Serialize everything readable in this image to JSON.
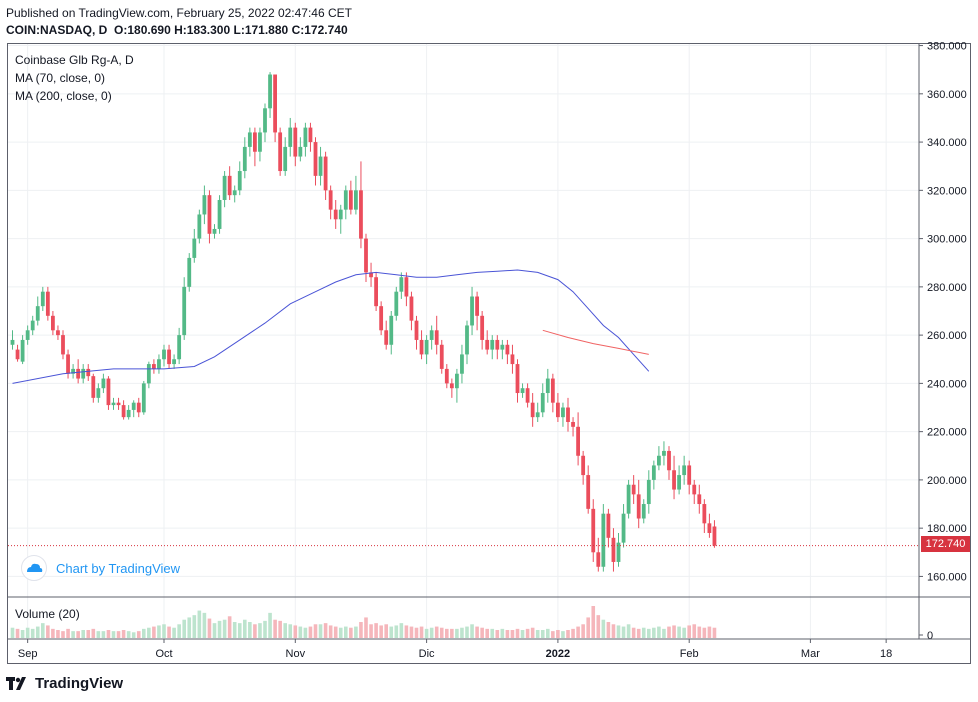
{
  "header": {
    "published": "Published on TradingView.com, February 25, 2022 02:47:46 CET",
    "symbol": "COIN:NASDAQ, D",
    "ohlc": [
      {
        "k": "O:",
        "v": "180.690"
      },
      {
        "k": "H:",
        "v": "183.300"
      },
      {
        "k": "L:",
        "v": "171.880"
      },
      {
        "k": "C:",
        "v": "172.740"
      }
    ]
  },
  "legend": {
    "title": "Coinbase Glb Rg-A, D",
    "ma70": "MA (70, close, 0)",
    "ma200": "MA (200, close, 0)",
    "volume": "Volume (20)"
  },
  "last_price": "172.740",
  "chart_by": "Chart by TradingView",
  "brand": "TradingView",
  "colors": {
    "up": "#53b987",
    "down": "#eb4d5c",
    "ma70": "#4a54d6",
    "ma200": "#f06363",
    "up_vol": "#bde4ce",
    "down_vol": "#f5b6bb",
    "price_tag": "#d7333f"
  },
  "chart_data": {
    "type": "candlestick",
    "title": "COIN:NASDAQ, D",
    "y_ticks": [
      "380.000",
      "360.000",
      "340.000",
      "320.000",
      "300.000",
      "280.000",
      "260.000",
      "240.000",
      "220.000",
      "200.000",
      "180.000",
      "160.000"
    ],
    "ylim": [
      152,
      380
    ],
    "x_ticks": [
      {
        "label": "Sep",
        "day": 3
      },
      {
        "label": "Oct",
        "day": 30
      },
      {
        "label": "Nov",
        "day": 56
      },
      {
        "label": "Dic",
        "day": 82
      },
      {
        "label": "2022",
        "day": 108
      },
      {
        "label": "Feb",
        "day": 134
      },
      {
        "label": "Mar",
        "day": 158
      },
      {
        "label": "18",
        "day": 173
      }
    ],
    "volume_axis_label": "0",
    "candles": [
      [
        256,
        258,
        262,
        254
      ],
      [
        254,
        250,
        256,
        249
      ],
      [
        249,
        258,
        260,
        248
      ],
      [
        258,
        262,
        264,
        256
      ],
      [
        262,
        266,
        268,
        260
      ],
      [
        266,
        272,
        276,
        264
      ],
      [
        272,
        278,
        280,
        270
      ],
      [
        278,
        268,
        280,
        266
      ],
      [
        268,
        262,
        270,
        260
      ],
      [
        262,
        260,
        264,
        258
      ],
      [
        260,
        252,
        262,
        250
      ],
      [
        252,
        244,
        254,
        242
      ],
      [
        244,
        246,
        248,
        242
      ],
      [
        246,
        242,
        250,
        240
      ],
      [
        242,
        246,
        248,
        240
      ],
      [
        246,
        243,
        248,
        241
      ],
      [
        243,
        234,
        244,
        232
      ],
      [
        234,
        238,
        240,
        232
      ],
      [
        238,
        242,
        244,
        236
      ],
      [
        242,
        231,
        243,
        229
      ],
      [
        231,
        232,
        234,
        229
      ],
      [
        232,
        231,
        234,
        229
      ],
      [
        231,
        226,
        233,
        225
      ],
      [
        226,
        229,
        231,
        225
      ],
      [
        229,
        232,
        233,
        226
      ],
      [
        232,
        228,
        234,
        226
      ],
      [
        228,
        240,
        241,
        227
      ],
      [
        240,
        248,
        249,
        238
      ],
      [
        248,
        246,
        250,
        244
      ],
      [
        246,
        250,
        252,
        244
      ],
      [
        250,
        254,
        256,
        247
      ],
      [
        254,
        248,
        256,
        246
      ],
      [
        248,
        250,
        252,
        246
      ],
      [
        250,
        260,
        263,
        248
      ],
      [
        260,
        280,
        284,
        258
      ],
      [
        280,
        292,
        294,
        278
      ],
      [
        292,
        300,
        304,
        290
      ],
      [
        300,
        310,
        312,
        298
      ],
      [
        310,
        318,
        322,
        306
      ],
      [
        318,
        302,
        320,
        298
      ],
      [
        302,
        304,
        306,
        300
      ],
      [
        304,
        316,
        318,
        302
      ],
      [
        316,
        326,
        328,
        313
      ],
      [
        326,
        318,
        330,
        316
      ],
      [
        318,
        320,
        322,
        315
      ],
      [
        320,
        328,
        332,
        318
      ],
      [
        328,
        338,
        342,
        325
      ],
      [
        338,
        344,
        346,
        334
      ],
      [
        344,
        336,
        346,
        330
      ],
      [
        336,
        344,
        346,
        332
      ],
      [
        344,
        354,
        356,
        340
      ],
      [
        354,
        368,
        369,
        350
      ],
      [
        368,
        344,
        358,
        340
      ],
      [
        344,
        328,
        346,
        326
      ],
      [
        328,
        338,
        342,
        326
      ],
      [
        338,
        346,
        350,
        334
      ],
      [
        346,
        334,
        348,
        330
      ],
      [
        334,
        338,
        342,
        332
      ],
      [
        338,
        346,
        348,
        334
      ],
      [
        346,
        340,
        348,
        336
      ],
      [
        340,
        326,
        342,
        322
      ],
      [
        326,
        334,
        338,
        322
      ],
      [
        334,
        320,
        336,
        316
      ],
      [
        320,
        312,
        322,
        308
      ],
      [
        312,
        308,
        316,
        304
      ],
      [
        308,
        312,
        314,
        302
      ],
      [
        312,
        320,
        322,
        308
      ],
      [
        320,
        312,
        324,
        310
      ],
      [
        312,
        320,
        326,
        310
      ],
      [
        320,
        300,
        332,
        296
      ],
      [
        300,
        286,
        302,
        282
      ],
      [
        286,
        284,
        290,
        280
      ],
      [
        284,
        272,
        286,
        270
      ],
      [
        272,
        262,
        274,
        260
      ],
      [
        262,
        256,
        266,
        254
      ],
      [
        256,
        268,
        270,
        252
      ],
      [
        268,
        278,
        280,
        266
      ],
      [
        278,
        284,
        286,
        275
      ],
      [
        284,
        276,
        286,
        272
      ],
      [
        276,
        266,
        278,
        262
      ],
      [
        266,
        258,
        268,
        254
      ],
      [
        258,
        252,
        262,
        250
      ],
      [
        252,
        258,
        260,
        248
      ],
      [
        258,
        262,
        264,
        254
      ],
      [
        262,
        256,
        268,
        252
      ],
      [
        256,
        246,
        258,
        244
      ],
      [
        246,
        240,
        248,
        238
      ],
      [
        240,
        238,
        242,
        234
      ],
      [
        238,
        244,
        246,
        232
      ],
      [
        244,
        252,
        256,
        240
      ],
      [
        252,
        264,
        266,
        248
      ],
      [
        264,
        276,
        280,
        260
      ],
      [
        276,
        268,
        278,
        262
      ],
      [
        268,
        258,
        270,
        254
      ],
      [
        258,
        254,
        262,
        252
      ],
      [
        254,
        258,
        260,
        250
      ],
      [
        258,
        254,
        260,
        250
      ],
      [
        254,
        256,
        258,
        250
      ],
      [
        256,
        252,
        258,
        248
      ],
      [
        252,
        248,
        256,
        244
      ],
      [
        248,
        236,
        250,
        232
      ],
      [
        236,
        238,
        240,
        234
      ],
      [
        238,
        232,
        240,
        230
      ],
      [
        232,
        226,
        236,
        222
      ],
      [
        226,
        228,
        232,
        224
      ],
      [
        228,
        236,
        240,
        226
      ],
      [
        236,
        242,
        246,
        232
      ],
      [
        242,
        232,
        244,
        228
      ],
      [
        232,
        226,
        236,
        224
      ],
      [
        226,
        230,
        232,
        222
      ],
      [
        230,
        224,
        234,
        220
      ],
      [
        224,
        222,
        226,
        218
      ],
      [
        222,
        210,
        228,
        206
      ],
      [
        210,
        202,
        212,
        198
      ],
      [
        202,
        188,
        206,
        186
      ],
      [
        188,
        170,
        192,
        166
      ],
      [
        170,
        164,
        176,
        162
      ],
      [
        164,
        186,
        190,
        162
      ],
      [
        186,
        176,
        188,
        172
      ],
      [
        176,
        166,
        180,
        162
      ],
      [
        166,
        174,
        178,
        164
      ],
      [
        174,
        186,
        190,
        172
      ],
      [
        186,
        198,
        200,
        184
      ],
      [
        198,
        194,
        202,
        190
      ],
      [
        194,
        184,
        200,
        180
      ],
      [
        184,
        190,
        192,
        182
      ],
      [
        190,
        200,
        204,
        186
      ],
      [
        200,
        206,
        208,
        196
      ],
      [
        206,
        210,
        214,
        204
      ],
      [
        210,
        212,
        216,
        206
      ],
      [
        212,
        204,
        214,
        200
      ],
      [
        204,
        196,
        210,
        192
      ],
      [
        196,
        202,
        206,
        194
      ],
      [
        202,
        206,
        210,
        198
      ],
      [
        206,
        198,
        208,
        194
      ],
      [
        198,
        194,
        200,
        190
      ],
      [
        194,
        190,
        198,
        186
      ],
      [
        190,
        182,
        192,
        178
      ],
      [
        182,
        178,
        186,
        176
      ],
      [
        180.69,
        172.74,
        183.3,
        171.88
      ]
    ],
    "volumes": [
      9,
      8,
      7,
      9,
      8,
      10,
      13,
      11,
      8,
      7,
      6,
      8,
      6,
      6,
      7,
      7,
      8,
      6,
      6,
      7,
      6,
      6,
      7,
      6,
      5,
      6,
      8,
      9,
      10,
      11,
      12,
      10,
      9,
      12,
      16,
      18,
      20,
      24,
      22,
      17,
      13,
      15,
      16,
      19,
      14,
      13,
      16,
      14,
      12,
      13,
      15,
      22,
      16,
      15,
      13,
      12,
      11,
      10,
      9,
      10,
      12,
      12,
      13,
      11,
      10,
      9,
      10,
      9,
      10,
      14,
      18,
      12,
      13,
      11,
      12,
      10,
      11,
      13,
      11,
      10,
      9,
      10,
      8,
      9,
      10,
      9,
      8,
      8,
      8,
      9,
      10,
      12,
      10,
      9,
      8,
      8,
      7,
      8,
      7,
      7,
      8,
      7,
      8,
      9,
      7,
      7,
      8,
      6,
      7,
      6,
      7,
      8,
      10,
      12,
      18,
      28,
      20,
      16,
      14,
      12,
      11,
      10,
      12,
      9,
      8,
      9,
      8,
      9,
      10,
      8,
      10,
      11,
      10,
      9,
      11,
      12,
      10,
      9,
      10,
      9
    ],
    "ma70": [
      [
        0,
        240
      ],
      [
        10,
        244
      ],
      [
        20,
        246
      ],
      [
        30,
        246
      ],
      [
        36,
        247
      ],
      [
        40,
        251
      ],
      [
        45,
        258
      ],
      [
        50,
        265
      ],
      [
        55,
        273
      ],
      [
        60,
        278
      ],
      [
        64,
        282
      ],
      [
        68,
        285
      ],
      [
        72,
        286
      ],
      [
        76,
        285
      ],
      [
        80,
        284
      ],
      [
        84,
        284
      ],
      [
        88,
        285
      ],
      [
        92,
        286
      ],
      [
        96,
        286.5
      ],
      [
        100,
        287
      ],
      [
        104,
        286
      ],
      [
        108,
        283
      ],
      [
        111,
        278
      ],
      [
        114,
        271
      ],
      [
        117,
        264
      ],
      [
        120,
        259
      ],
      [
        123,
        252
      ],
      [
        126,
        245
      ]
    ],
    "ma200": [
      [
        105,
        262
      ],
      [
        110,
        259
      ],
      [
        115,
        256.5
      ],
      [
        120,
        254.5
      ],
      [
        126,
        252
      ]
    ]
  }
}
